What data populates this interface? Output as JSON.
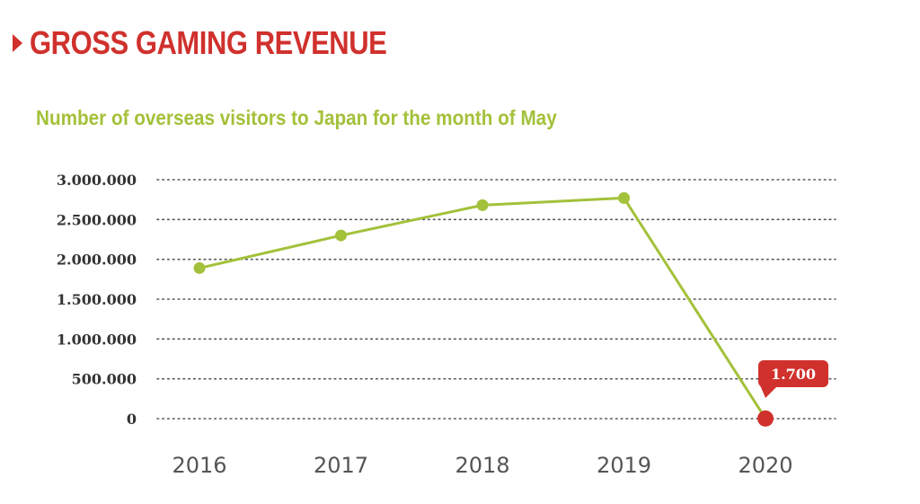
{
  "header": {
    "title": "GROSS GAMING REVENUE"
  },
  "colors": {
    "accent_red": "#d0312d",
    "series_green": "#a3c13a",
    "text_dark": "#333333",
    "text_gray": "#555555"
  },
  "chart_data": {
    "type": "line",
    "title": "Number of overseas visitors to Japan for the month of May",
    "xlabel": "",
    "ylabel": "",
    "categories": [
      "2016",
      "2017",
      "2018",
      "2019",
      "2020"
    ],
    "series": [
      {
        "values": [
          1890000,
          2300000,
          2680000,
          2770000,
          1700
        ]
      }
    ],
    "ylim": [
      0,
      3000000
    ],
    "y_ticks": [
      0,
      500000,
      1000000,
      1500000,
      2000000,
      2500000,
      3000000
    ],
    "y_tick_labels": [
      "0",
      "500.000",
      "1.000.000",
      "1.500.000",
      "2.000.000",
      "2.500.000",
      "3.000.000"
    ],
    "grid": true,
    "legend": "none",
    "highlight": {
      "index": 4,
      "label": "1.700",
      "color": "#d0312d"
    }
  }
}
